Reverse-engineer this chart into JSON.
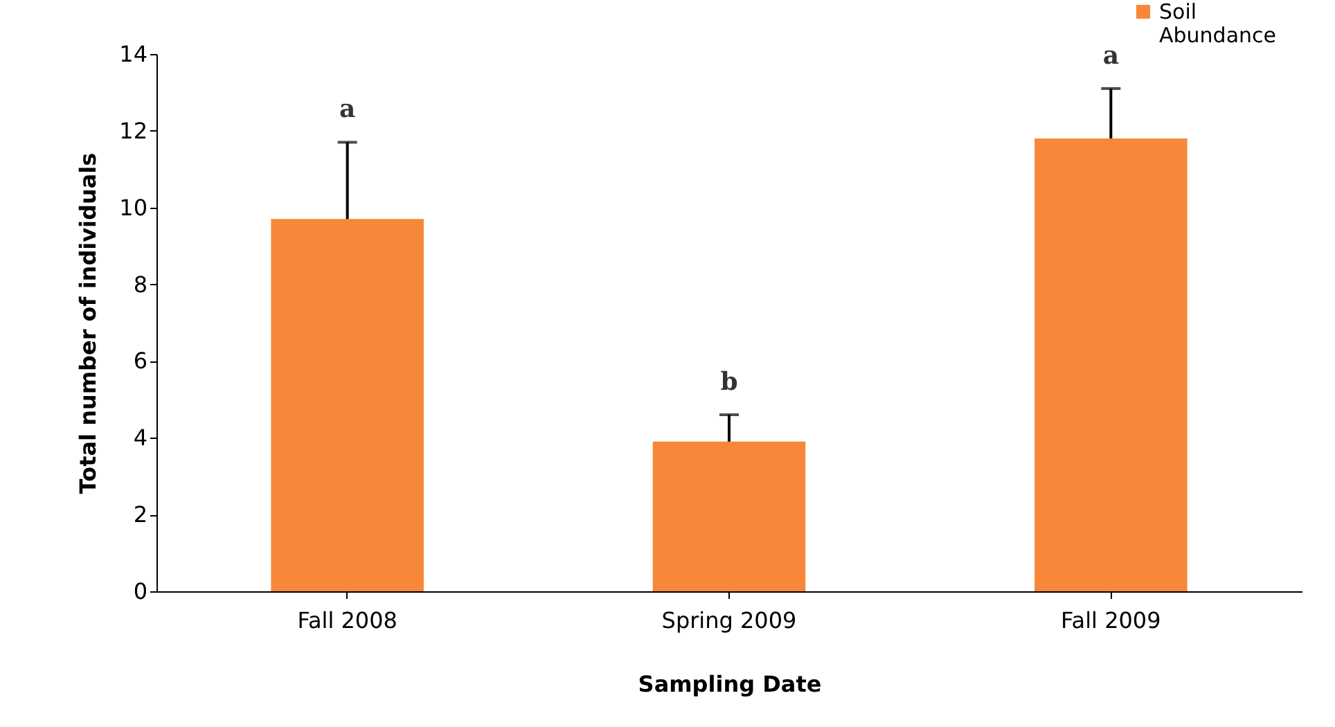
{
  "chart_data": {
    "type": "bar",
    "xlabel": "Sampling Date",
    "ylabel": "Total number of individuals",
    "categories": [
      "Fall 2008",
      "Spring 2009",
      "Fall 2009"
    ],
    "series": [
      {
        "name": "Soil Abundance",
        "color": "#f7883a",
        "values": [
          9.7,
          3.9,
          11.8
        ],
        "errors": [
          [
            9.7,
            11.7
          ],
          [
            3.9,
            4.6
          ],
          [
            11.8,
            13.1
          ]
        ]
      }
    ],
    "ylim": [
      0,
      14
    ],
    "yticks": [
      0,
      2,
      4,
      6,
      8,
      10,
      12,
      14
    ],
    "legend": "top right",
    "annotations": [
      "a",
      "b",
      "a"
    ]
  }
}
